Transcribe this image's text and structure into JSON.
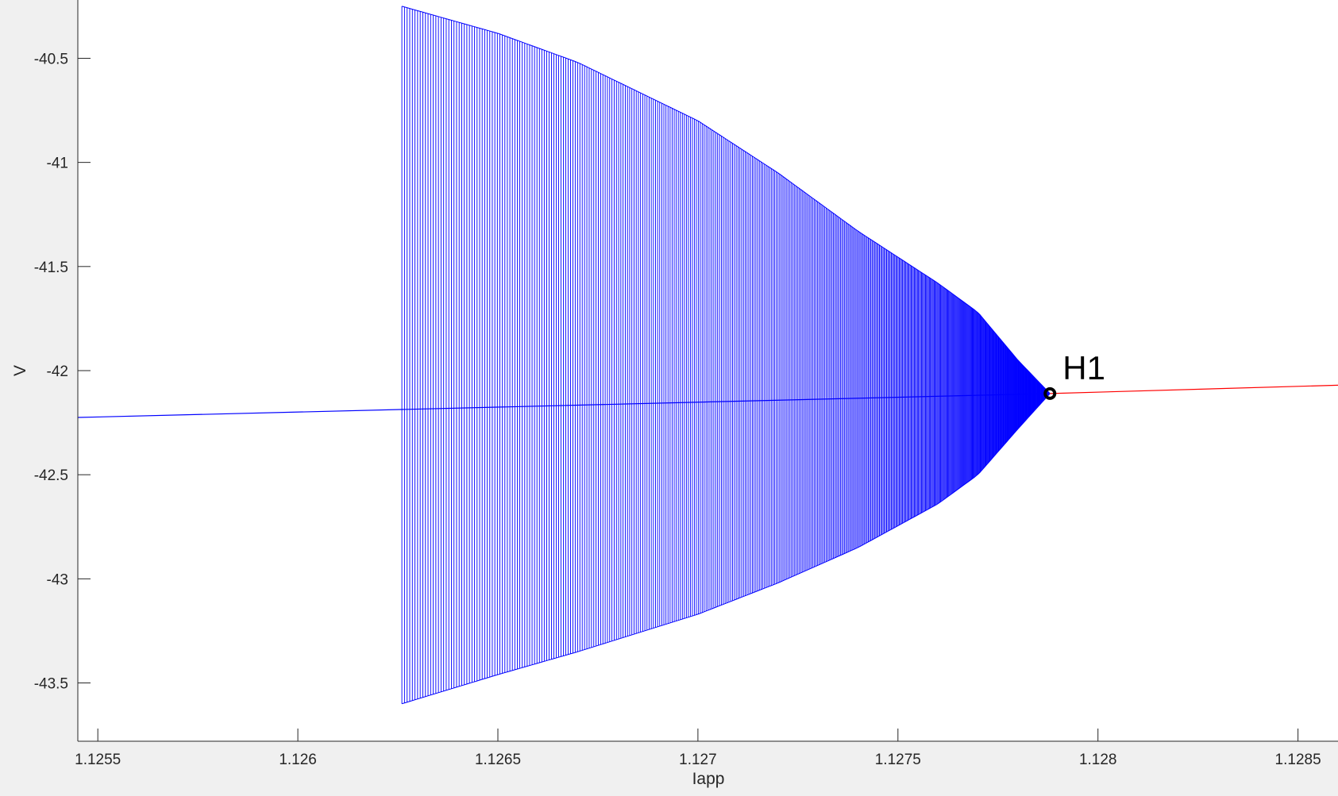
{
  "chart_data": {
    "type": "line",
    "title": "",
    "xlabel": "Iapp",
    "ylabel": "V",
    "xlim": [
      1.12545,
      1.1286
    ],
    "ylim": [
      -43.78,
      -40.22
    ],
    "xticks": [
      1.1255,
      1.126,
      1.1265,
      1.127,
      1.1275,
      1.128,
      1.1285
    ],
    "xtick_labels": [
      "1.1255",
      "1.126",
      "1.1265",
      "1.127",
      "1.1275",
      "1.128",
      "1.1285"
    ],
    "yticks": [
      -40.5,
      -41,
      -41.5,
      -42,
      -42.5,
      -43,
      -43.5
    ],
    "ytick_labels": [
      "-40.5",
      "-41",
      "-41.5",
      "-42",
      "-42.5",
      "-43",
      "-43.5"
    ],
    "grid": false,
    "series": [
      {
        "kind": "equilibrium-stable",
        "color": "#0000ff",
        "x": [
          1.12545,
          1.12788
        ],
        "y": [
          -42.225,
          -42.11
        ]
      },
      {
        "kind": "equilibrium-unstable",
        "color": "#ff0000",
        "x": [
          1.12788,
          1.1286
        ],
        "y": [
          -42.11,
          -42.07
        ]
      },
      {
        "kind": "limit-cycle-envelope",
        "color": "#0000ff",
        "x_start": 1.12626,
        "x_end": 1.12788,
        "vmax": [
          [
            1.12626,
            -40.25
          ],
          [
            1.1265,
            -40.38
          ],
          [
            1.1267,
            -40.52
          ],
          [
            1.127,
            -40.8
          ],
          [
            1.1272,
            -41.05
          ],
          [
            1.1274,
            -41.33
          ],
          [
            1.1276,
            -41.58
          ],
          [
            1.1277,
            -41.72
          ],
          [
            1.1278,
            -41.95
          ],
          [
            1.12788,
            -42.11
          ]
        ],
        "vmin": [
          [
            1.12626,
            -43.6
          ],
          [
            1.1265,
            -43.46
          ],
          [
            1.1267,
            -43.35
          ],
          [
            1.127,
            -43.17
          ],
          [
            1.1272,
            -43.02
          ],
          [
            1.1274,
            -42.85
          ],
          [
            1.1276,
            -42.64
          ],
          [
            1.1277,
            -42.5
          ],
          [
            1.1278,
            -42.28
          ],
          [
            1.12788,
            -42.11
          ]
        ]
      }
    ],
    "annotations": [
      {
        "label": "H1",
        "x": 1.12788,
        "y": -42.11,
        "marker": "circle"
      }
    ]
  }
}
